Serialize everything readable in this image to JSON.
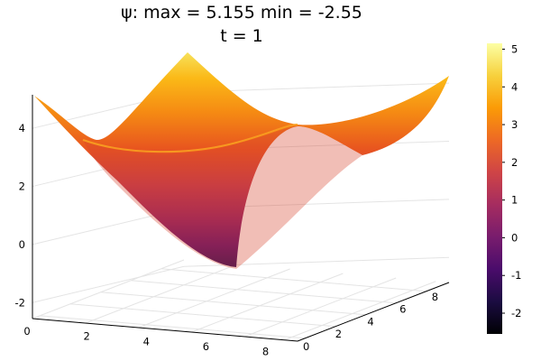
{
  "chart_data": {
    "type": "surface",
    "title": "ψ: max = 5.155 min = -2.55",
    "subtitle": "t = 1",
    "x_ticks": [
      "0",
      "2",
      "4",
      "6",
      "8"
    ],
    "y_ticks": [
      "0",
      "2",
      "4",
      "6",
      "8"
    ],
    "z_ticks": [
      "-2",
      "0",
      "2",
      "4"
    ],
    "colorbar_ticks": [
      "-2",
      "-1",
      "0",
      "1",
      "2",
      "3",
      "4",
      "5"
    ],
    "x_range": [
      0,
      9.42
    ],
    "y_range": [
      0,
      9.42
    ],
    "z_range": [
      -2.55,
      5.155
    ],
    "colorbar_range": [
      -2.55,
      5.155
    ],
    "grid": true,
    "colormap": "inferno",
    "colormap_stops": [
      "#000004",
      "#1b0c41",
      "#4a0c6b",
      "#781c6d",
      "#a52c60",
      "#cf4446",
      "#ed6925",
      "#fb9b06",
      "#f7d13d",
      "#fcffa4"
    ],
    "surface_corner_values": [
      {
        "x": 0,
        "y": 0,
        "z": 2.3
      },
      {
        "x": 9.42,
        "y": 0,
        "z": 2.3
      },
      {
        "x": 0,
        "y": 9.42,
        "z": 5.155
      },
      {
        "x": 9.42,
        "y": 9.42,
        "z": 4.0
      }
    ],
    "surface_minimum": {
      "x": 4.71,
      "y": 1.5,
      "z": -2.55
    },
    "surface_maximum": {
      "x": 0,
      "y": 9.42,
      "z": 5.155
    }
  }
}
